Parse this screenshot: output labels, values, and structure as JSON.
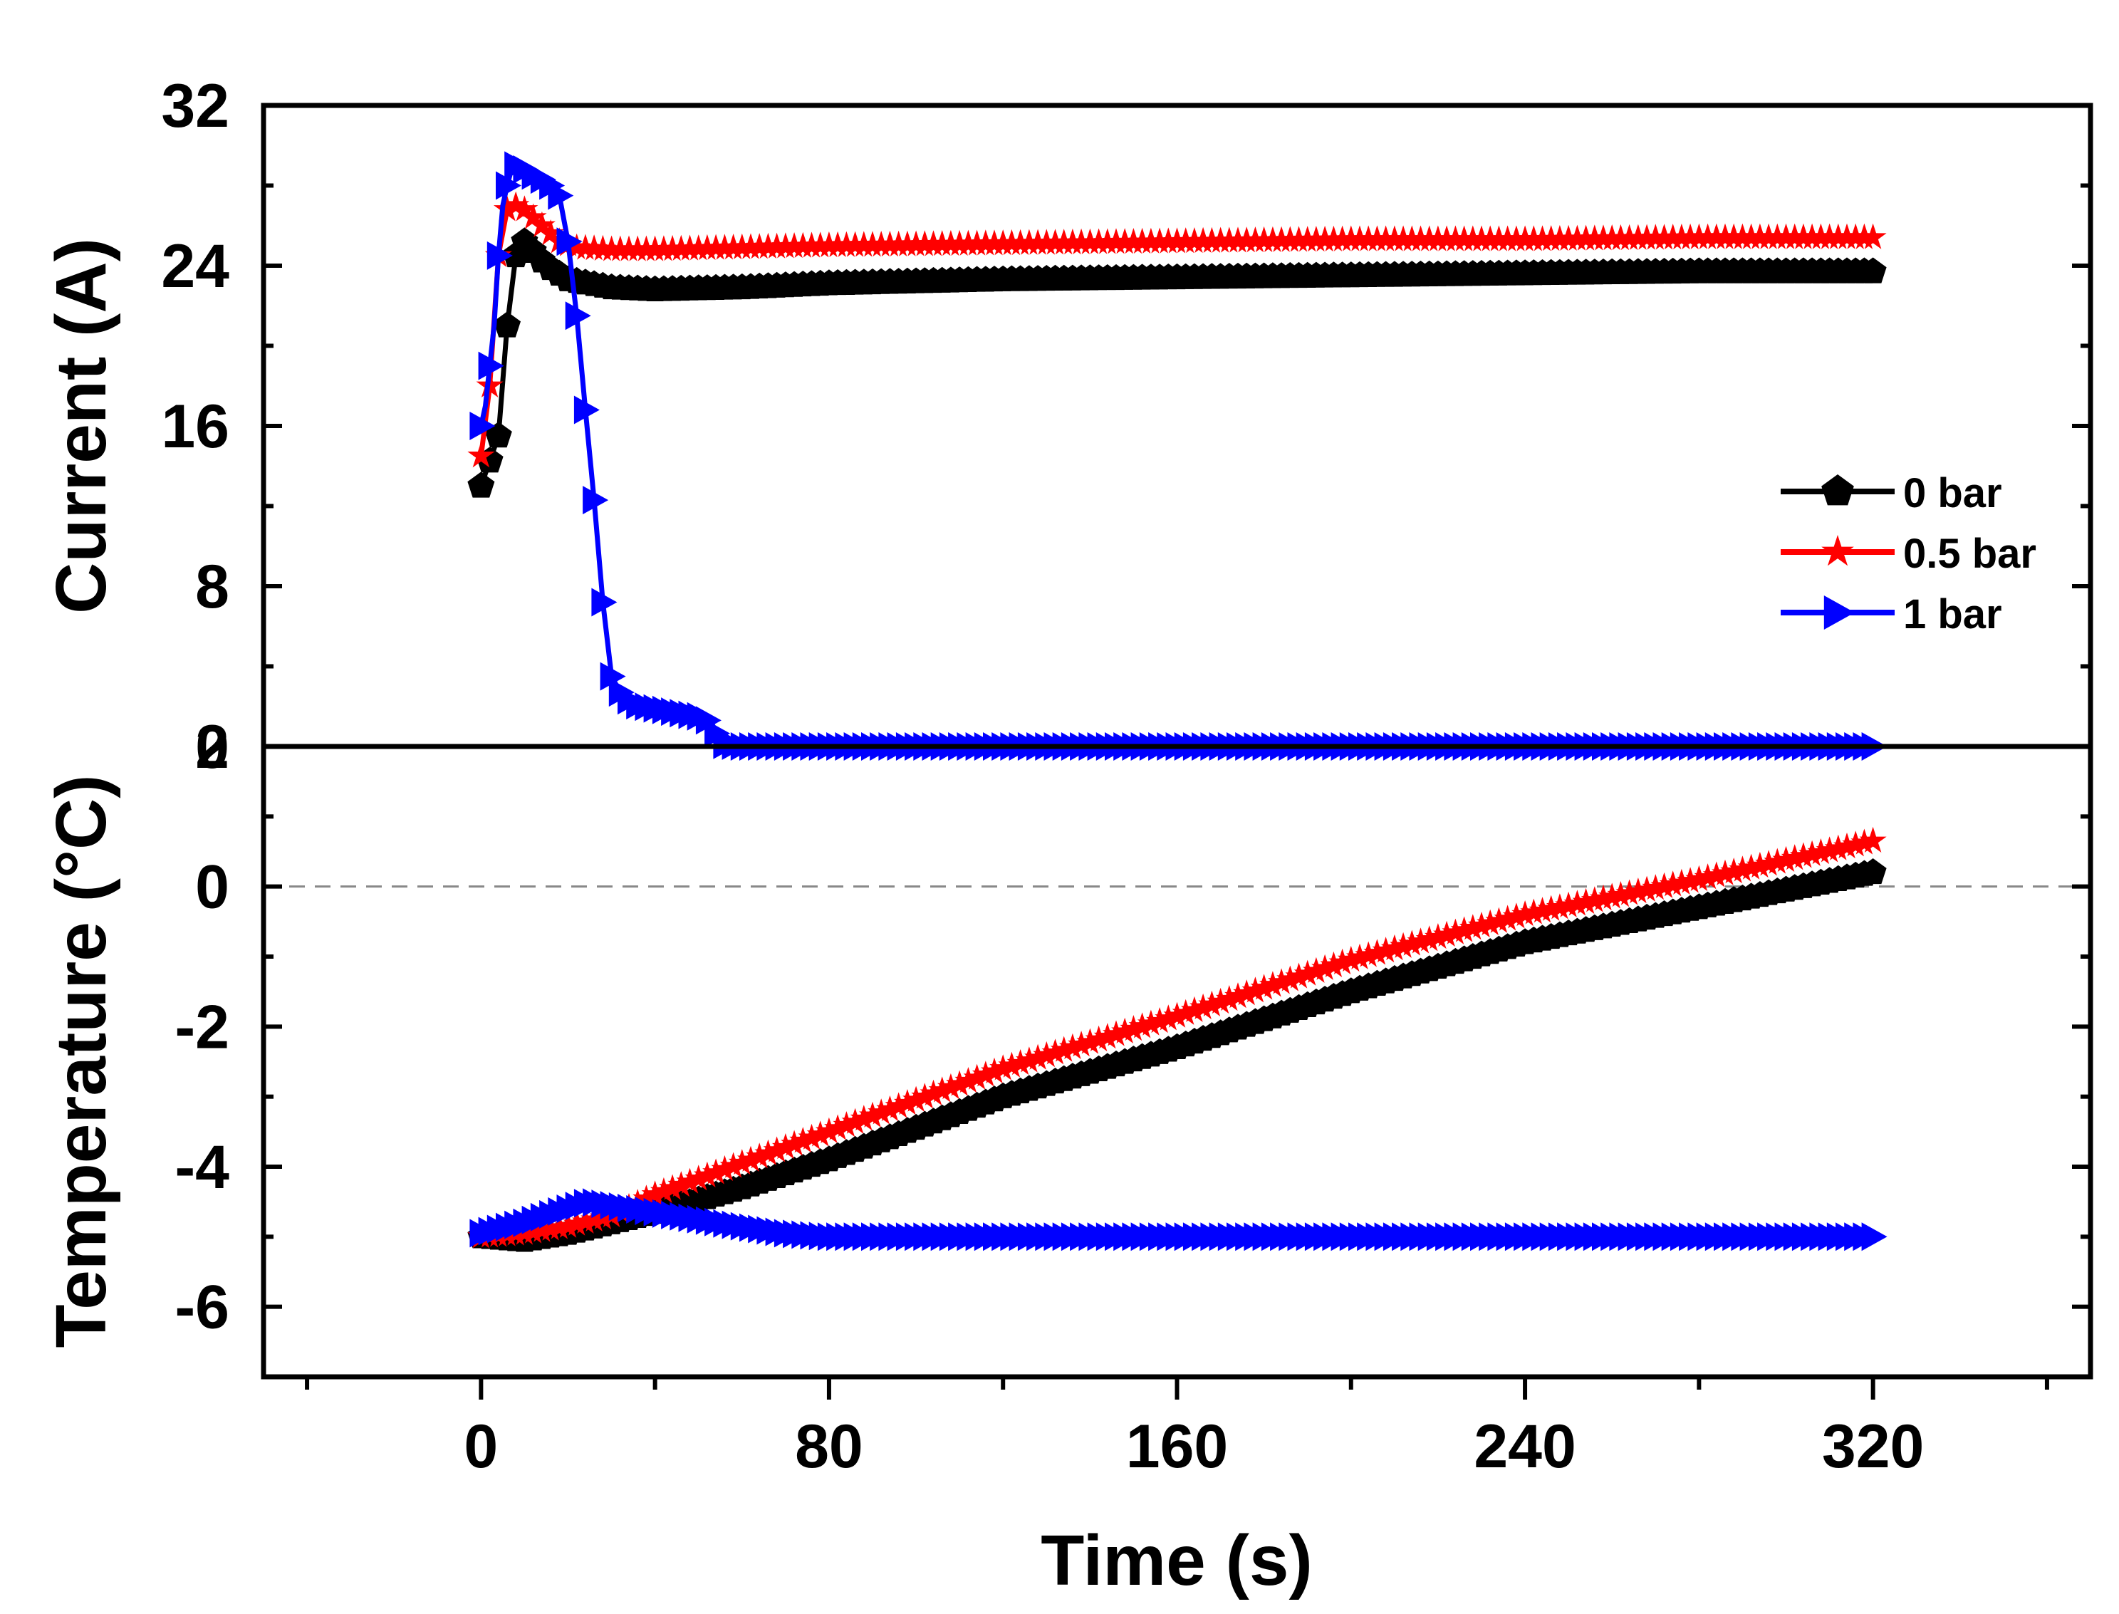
{
  "chart_data": {
    "type": "line",
    "x_axis": {
      "label": "Time (s)",
      "range": [
        -50,
        370
      ],
      "ticks": [
        0,
        80,
        160,
        240,
        320
      ],
      "tick_labels": [
        "0",
        "80",
        "160",
        "240",
        "320"
      ]
    },
    "legend": {
      "placement": "right",
      "entries": [
        "0 bar",
        "0.5 bar",
        "1 bar"
      ]
    },
    "series_styles": [
      {
        "name": "0 bar",
        "color": "#000000",
        "marker": "pentagon"
      },
      {
        "name": "0.5 bar",
        "color": "#ff0000",
        "marker": "star"
      },
      {
        "name": "1 bar",
        "color": "#0000ff",
        "marker": "triangle-right"
      }
    ],
    "panels": [
      {
        "id": "current",
        "ylabel": "Current (A)",
        "ylim": [
          0,
          32
        ],
        "yticks": [
          0,
          8,
          16,
          24,
          32
        ],
        "ytick_labels": [
          "0",
          "8",
          "16",
          "24",
          "32"
        ],
        "series": [
          {
            "name": "0 bar",
            "x": [
              0,
              4,
              6,
              8,
              10,
              15,
              20,
              30,
              40,
              60,
              80,
              120,
              160,
              200,
              240,
              280,
              320
            ],
            "y": [
              13,
              15.5,
              21,
              24.5,
              25.2,
              24,
              23.3,
              22.9,
              22.8,
              22.9,
              23.1,
              23.3,
              23.4,
              23.5,
              23.6,
              23.7,
              23.7
            ]
          },
          {
            "name": "0.5 bar",
            "x": [
              0,
              2,
              4,
              6,
              8,
              10,
              14,
              18,
              22,
              30,
              40,
              60,
              80,
              120,
              160,
              200,
              240,
              280,
              320
            ],
            "y": [
              14.5,
              18,
              24.5,
              26.8,
              27,
              26.8,
              26,
              25.2,
              24.9,
              24.8,
              24.8,
              24.9,
              25,
              25.1,
              25.2,
              25.3,
              25.3,
              25.4,
              25.4
            ]
          },
          {
            "name": "1 bar",
            "x": [
              0,
              1,
              2,
              3,
              4,
              5,
              6,
              7,
              8,
              10,
              12,
              14,
              16,
              18,
              20,
              22,
              24,
              26,
              28,
              30,
              32,
              35,
              40,
              45,
              50,
              53,
              55,
              60,
              80,
              120,
              160,
              200,
              240,
              280,
              320
            ],
            "y": [
              16,
              17,
              19,
              21,
              24.5,
              27,
              28,
              28.8,
              29,
              28.8,
              28.5,
              28.3,
              28,
              27.5,
              25.2,
              21.5,
              16.8,
              12.3,
              7.2,
              3.5,
              2.7,
              2.1,
              1.9,
              1.7,
              1.5,
              1.2,
              0.1,
              0,
              0,
              0,
              0,
              0,
              0,
              0,
              0
            ]
          }
        ]
      },
      {
        "id": "temperature",
        "ylabel": "Temperature (°C)",
        "ylim": [
          -7,
          2
        ],
        "yticks": [
          -6,
          -4,
          -2,
          0,
          2
        ],
        "ytick_labels": [
          "-6",
          "-4",
          "-2",
          "0",
          "2"
        ],
        "reference_line_y": 0,
        "series": [
          {
            "name": "0 bar",
            "x": [
              0,
              10,
              20,
              30,
              40,
              60,
              80,
              120,
              160,
              200,
              240,
              280,
              320
            ],
            "y": [
              -5,
              -5.05,
              -4.95,
              -4.8,
              -4.65,
              -4.3,
              -3.9,
              -3.0,
              -2.3,
              -1.5,
              -0.8,
              -0.3,
              0.2
            ]
          },
          {
            "name": "0.5 bar",
            "x": [
              0,
              10,
              20,
              30,
              40,
              60,
              80,
              120,
              160,
              200,
              240,
              280,
              320
            ],
            "y": [
              -5,
              -4.95,
              -4.85,
              -4.7,
              -4.4,
              -3.95,
              -3.5,
              -2.6,
              -1.85,
              -1.05,
              -0.4,
              0.1,
              0.65
            ]
          },
          {
            "name": "1 bar",
            "x": [
              0,
              10,
              20,
              25,
              30,
              40,
              50,
              60,
              70,
              80,
              120,
              160,
              200,
              240,
              280,
              320
            ],
            "y": [
              -4.95,
              -4.8,
              -4.6,
              -4.5,
              -4.55,
              -4.65,
              -4.75,
              -4.85,
              -4.95,
              -5,
              -5,
              -5,
              -5,
              -5,
              -5,
              -5
            ]
          }
        ]
      }
    ]
  }
}
